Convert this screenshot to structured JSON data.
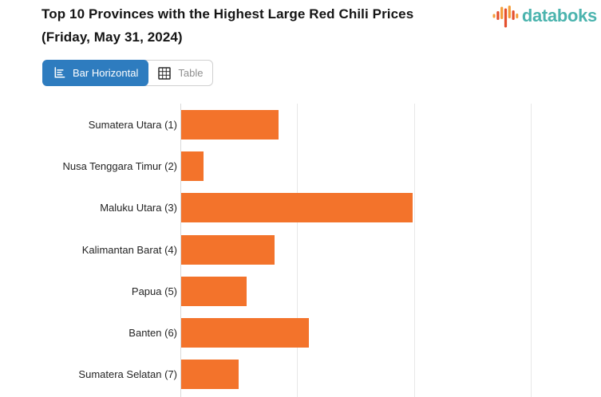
{
  "header": {
    "title_line1": "Top 10 Provinces with the Highest Large Red Chili Prices",
    "title_line2": "(Friday, May 31, 2024)",
    "logo_text": "databoks",
    "logo_text_color": "#4bb4ae",
    "logo_icon_colors": {
      "orange": "#f59c38",
      "red": "#e4502e"
    }
  },
  "toolbar": {
    "bar_horizontal_label": "Bar Horizontal",
    "table_label": "Table",
    "active_button": "Bar Horizontal",
    "active_bg_color": "#2e7cbf"
  },
  "chart_data": {
    "type": "bar",
    "orientation": "horizontal",
    "title": "Top 10 Provinces with the Highest Large Red Chili Prices (Friday, May 31, 2024)",
    "categories": [
      "Sumatera Utara (1)",
      "Nusa Tenggara Timur (2)",
      "Maluku Utara (3)",
      "Kalimantan Barat (4)",
      "Papua (5)",
      "Banten (6)",
      "Sumatera Selatan (7)"
    ],
    "values": [
      0.83,
      0.19,
      1.98,
      0.8,
      0.56,
      1.09,
      0.49
    ],
    "bar_color": "#f3732b",
    "value_axis": {
      "min": 0,
      "max": 3.6,
      "tick_interval": 1,
      "gridlines": [
        1,
        2,
        3
      ],
      "tick_labels_visible": false
    },
    "grid": true,
    "legend": "none",
    "note": "Value-axis tick labels and rows 8-10 are cropped out of the visible screenshot; values are expressed in gridline units estimated from bar lengths."
  }
}
